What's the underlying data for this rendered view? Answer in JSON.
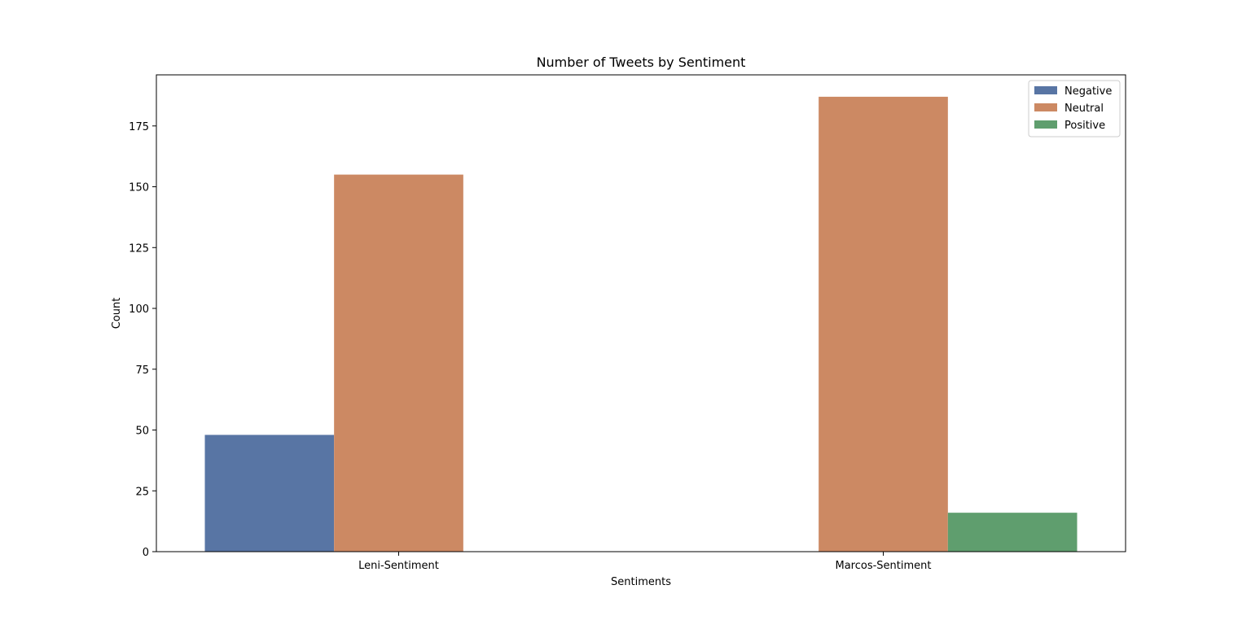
{
  "chart_data": {
    "type": "bar",
    "title": "Number of Tweets by Sentiment",
    "xlabel": "Sentiments",
    "ylabel": "Count",
    "categories": [
      "Leni-Sentiment",
      "Marcos-Sentiment"
    ],
    "series": [
      {
        "name": "Negative",
        "values": [
          48,
          0
        ],
        "color": "#5875a4"
      },
      {
        "name": "Neutral",
        "values": [
          155,
          187
        ],
        "color": "#cc8963"
      },
      {
        "name": "Positive",
        "values": [
          0,
          16
        ],
        "color": "#5f9e6e"
      }
    ],
    "ylim": [
      0,
      196
    ],
    "yticks": [
      0,
      25,
      50,
      75,
      100,
      125,
      150,
      175
    ],
    "grid": false,
    "legend_position": "top-right"
  }
}
